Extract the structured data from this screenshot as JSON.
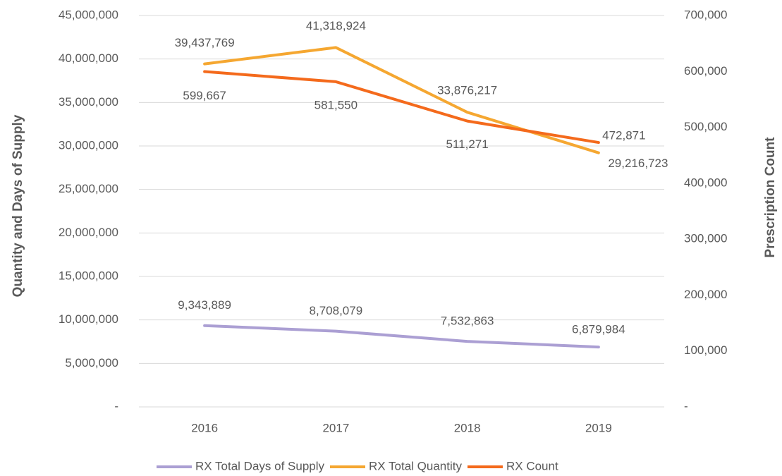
{
  "chart_data": {
    "type": "line",
    "categories": [
      "2016",
      "2017",
      "2018",
      "2019"
    ],
    "y_label": "Quantity and Days of Supply",
    "y2_label": "Prescription Count",
    "ylim": [
      0,
      45000000
    ],
    "yticks": [
      {
        "value": 0,
        "label": "-"
      },
      {
        "value": 5000000,
        "label": "5,000,000"
      },
      {
        "value": 10000000,
        "label": "10,000,000"
      },
      {
        "value": 15000000,
        "label": "15,000,000"
      },
      {
        "value": 20000000,
        "label": "20,000,000"
      },
      {
        "value": 25000000,
        "label": "25,000,000"
      },
      {
        "value": 30000000,
        "label": "30,000,000"
      },
      {
        "value": 35000000,
        "label": "35,000,000"
      },
      {
        "value": 40000000,
        "label": "40,000,000"
      },
      {
        "value": 45000000,
        "label": "45,000,000"
      }
    ],
    "y2lim": [
      0,
      700000
    ],
    "y2ticks": [
      {
        "value": 0,
        "label": "-"
      },
      {
        "value": 100000,
        "label": "100,000"
      },
      {
        "value": 200000,
        "label": "200,000"
      },
      {
        "value": 300000,
        "label": "300,000"
      },
      {
        "value": 400000,
        "label": "400,000"
      },
      {
        "value": 500000,
        "label": "500,000"
      },
      {
        "value": 600000,
        "label": "600,000"
      },
      {
        "value": 700000,
        "label": "700,000"
      }
    ],
    "grid": true,
    "legend": "bottom",
    "series": [
      {
        "name": "RX Total Days of Supply",
        "color": "#ab9fd3",
        "values": [
          9343889,
          8708079,
          7532863,
          6879984
        ],
        "value_labels": [
          "9,343,889",
          "8,708,079",
          "7,532,863",
          "6,879,984"
        ]
      },
      {
        "name": "RX Total Quantity",
        "color": "#f5a731",
        "values": [
          39437769,
          41318924,
          33876217,
          29216723
        ],
        "value_labels": [
          "39,437,769",
          "41,318,924",
          "33,876,217",
          "29,216,723"
        ]
      },
      {
        "name": "RX Count",
        "color": "#f46a1c",
        "axis": "y2",
        "values": [
          599667,
          581550,
          511271,
          472871
        ],
        "value_labels": [
          "599,667",
          "581,550",
          "511,271",
          "472,871"
        ]
      }
    ]
  }
}
